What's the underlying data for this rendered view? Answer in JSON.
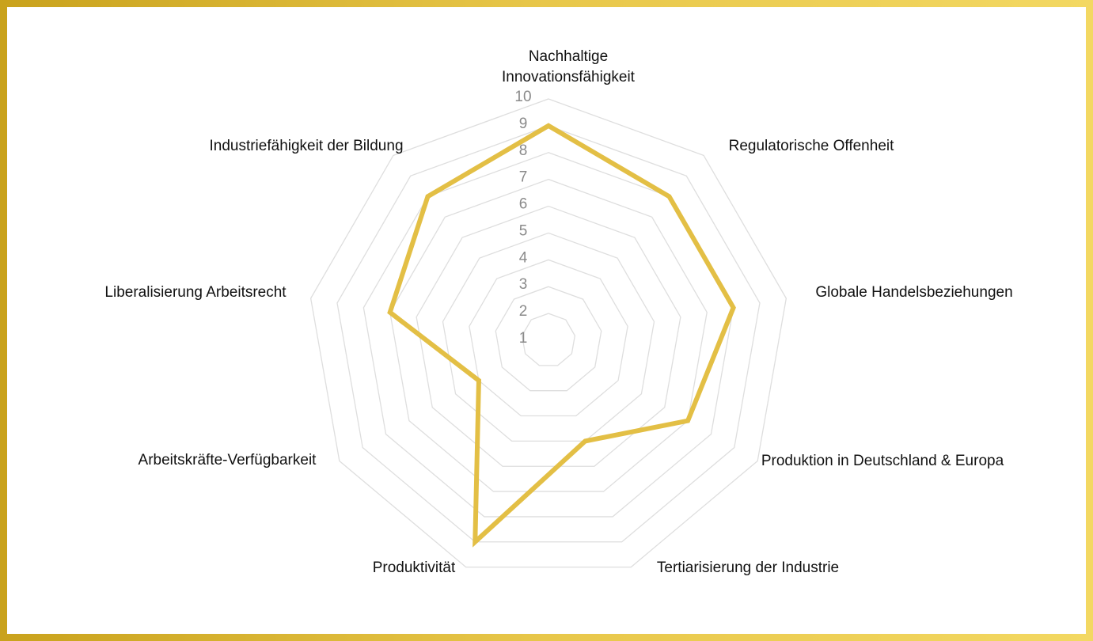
{
  "chart_data": {
    "type": "radar",
    "categories": [
      "Nachhaltige Innovationsfähigkeit",
      "Regulatorische Offenheit",
      "Globale Handelsbeziehungen",
      "Produktion in Deutschland & Europa",
      "Tertiarisierung der Industrie",
      "Produktivität",
      "Arbeitskräfte-Verfügbarkeit",
      "Liberalisierung Arbeitsrecht",
      "Industriefähigkeit der Bildung"
    ],
    "values": [
      9,
      8,
      8,
      7,
      5,
      9,
      4,
      7,
      8
    ],
    "color": "#e3bf45",
    "ylim": [
      1,
      10
    ],
    "yticks": [
      1,
      2,
      3,
      4,
      5,
      6,
      7,
      8,
      9,
      10
    ],
    "grid": true
  }
}
